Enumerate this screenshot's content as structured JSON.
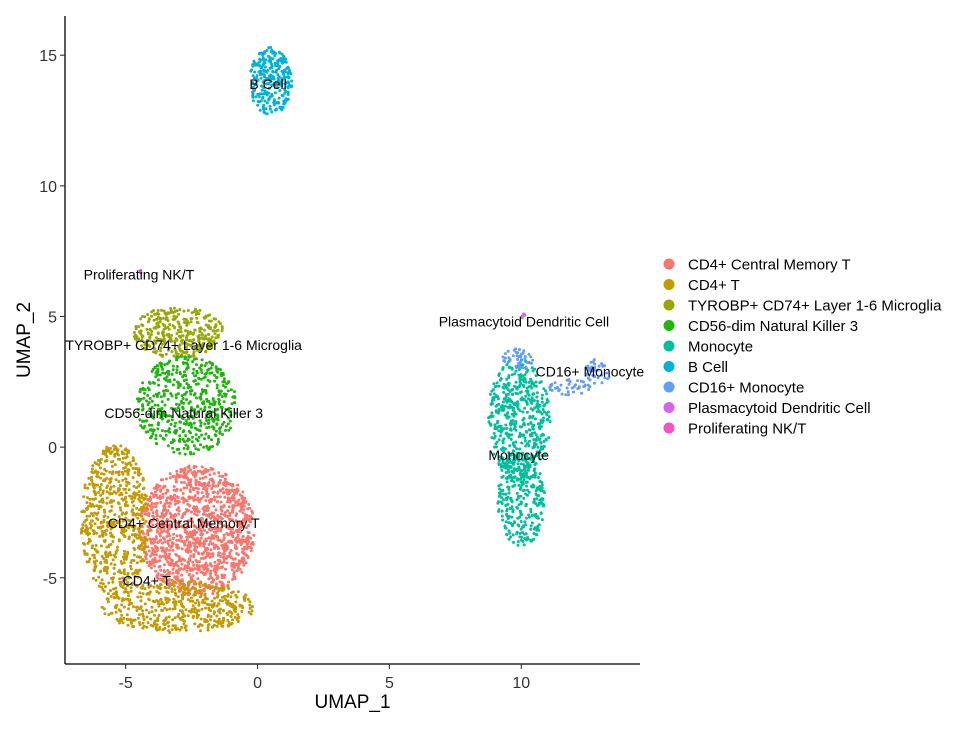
{
  "chart_data": {
    "type": "scatter",
    "title": "",
    "xlabel": "UMAP_1",
    "ylabel": "UMAP_2",
    "xlim": [
      -7.3,
      14.5
    ],
    "ylim": [
      -8.3,
      16.5
    ],
    "xticks": [
      -5,
      0,
      5,
      10
    ],
    "yticks": [
      -5,
      0,
      5,
      10,
      15
    ],
    "xtick_labels": [
      "-5",
      "0",
      "5",
      "10"
    ],
    "ytick_labels": [
      "-5",
      "0",
      "5",
      "10",
      "15"
    ],
    "grid": false,
    "legend_position": "right",
    "legend": [
      {
        "label": "CD4+ Central Memory T",
        "color": "#F8766D"
      },
      {
        "label": "CD4+ T",
        "color": "#C49A00"
      },
      {
        "label": "TYROBP+ CD74+ Layer 1-6 Microglia",
        "color": "#99A800"
      },
      {
        "label": "CD56-dim Natural Killer 3",
        "color": "#1FB40E"
      },
      {
        "label": "Monocyte",
        "color": "#00BF9C"
      },
      {
        "label": "B Cell",
        "color": "#00B2D8"
      },
      {
        "label": "CD16+ Monocyte",
        "color": "#619CFF"
      },
      {
        "label": "Plasmacytoid Dendritic Cell",
        "color": "#D664E8"
      },
      {
        "label": "Proliferating NK/T",
        "color": "#F652C2"
      }
    ],
    "cluster_labels": [
      {
        "text": "B Cell",
        "x": 0.4,
        "y": 13.9
      },
      {
        "text": "Proliferating NK/T",
        "x": -4.5,
        "y": 6.6
      },
      {
        "text": "Plasmacytoid Dendritic Cell",
        "x": 10.1,
        "y": 4.8
      },
      {
        "text": "TYROBP+ CD74+ Layer 1-6 Microglia",
        "x": -2.8,
        "y": 3.9
      },
      {
        "text": "CD16+ Monocyte",
        "x": 12.6,
        "y": 2.9
      },
      {
        "text": "CD56-dim Natural Killer 3",
        "x": -2.8,
        "y": 1.3
      },
      {
        "text": "Monocyte",
        "x": 9.9,
        "y": -0.3
      },
      {
        "text": "CD4+ Central Memory T",
        "x": -2.8,
        "y": -2.9
      },
      {
        "text": "CD4+ T",
        "x": -4.2,
        "y": -5.1
      }
    ],
    "series": [
      {
        "name": "CD4+ Central Memory T",
        "color": "#F8766D",
        "points": 1300,
        "regions": [
          {
            "cx": -2.3,
            "cy": -3.2,
            "rx": 2.2,
            "ry": 2.5
          }
        ]
      },
      {
        "name": "CD4+ T",
        "color": "#C49A00",
        "points": 1100,
        "regions": [
          {
            "cx": -5.4,
            "cy": -2.8,
            "rx": 1.3,
            "ry": 2.9
          },
          {
            "cx": -3.0,
            "cy": -6.1,
            "rx": 2.9,
            "ry": 1.0
          }
        ]
      },
      {
        "name": "TYROBP+ CD74+ Layer 1-6 Microglia",
        "color": "#99A800",
        "points": 330,
        "regions": [
          {
            "cx": -3.0,
            "cy": 4.4,
            "rx": 1.7,
            "ry": 1.0
          }
        ]
      },
      {
        "name": "CD56-dim Natural Killer 3",
        "color": "#1FB40E",
        "points": 520,
        "regions": [
          {
            "cx": -2.7,
            "cy": 1.6,
            "rx": 1.9,
            "ry": 1.9
          }
        ]
      },
      {
        "name": "Monocyte",
        "color": "#00BF9C",
        "points": 800,
        "regions": [
          {
            "cx": 9.9,
            "cy": 1.0,
            "rx": 1.2,
            "ry": 2.4
          },
          {
            "cx": 10.0,
            "cy": -2.0,
            "rx": 0.9,
            "ry": 1.8
          }
        ]
      },
      {
        "name": "B Cell",
        "color": "#00B2D8",
        "points": 270,
        "regions": [
          {
            "cx": 0.5,
            "cy": 14.0,
            "rx": 0.8,
            "ry": 1.3
          }
        ]
      },
      {
        "name": "CD16+ Monocyte",
        "color": "#619CFF",
        "points": 120,
        "regions": [
          {
            "cx": 12.9,
            "cy": 2.9,
            "rx": 0.5,
            "ry": 0.5
          },
          {
            "cx": 11.8,
            "cy": 2.3,
            "rx": 0.8,
            "ry": 0.3
          },
          {
            "cx": 9.9,
            "cy": 3.4,
            "rx": 0.6,
            "ry": 0.4
          }
        ]
      },
      {
        "name": "Plasmacytoid Dendritic Cell",
        "color": "#D664E8",
        "points": 5,
        "regions": [
          {
            "cx": 10.1,
            "cy": 5.0,
            "rx": 0.1,
            "ry": 0.1
          }
        ]
      },
      {
        "name": "Proliferating NK/T",
        "color": "#F652C2",
        "points": 3,
        "regions": [
          {
            "cx": -4.5,
            "cy": 6.7,
            "rx": 0.1,
            "ry": 0.1
          }
        ]
      }
    ]
  }
}
